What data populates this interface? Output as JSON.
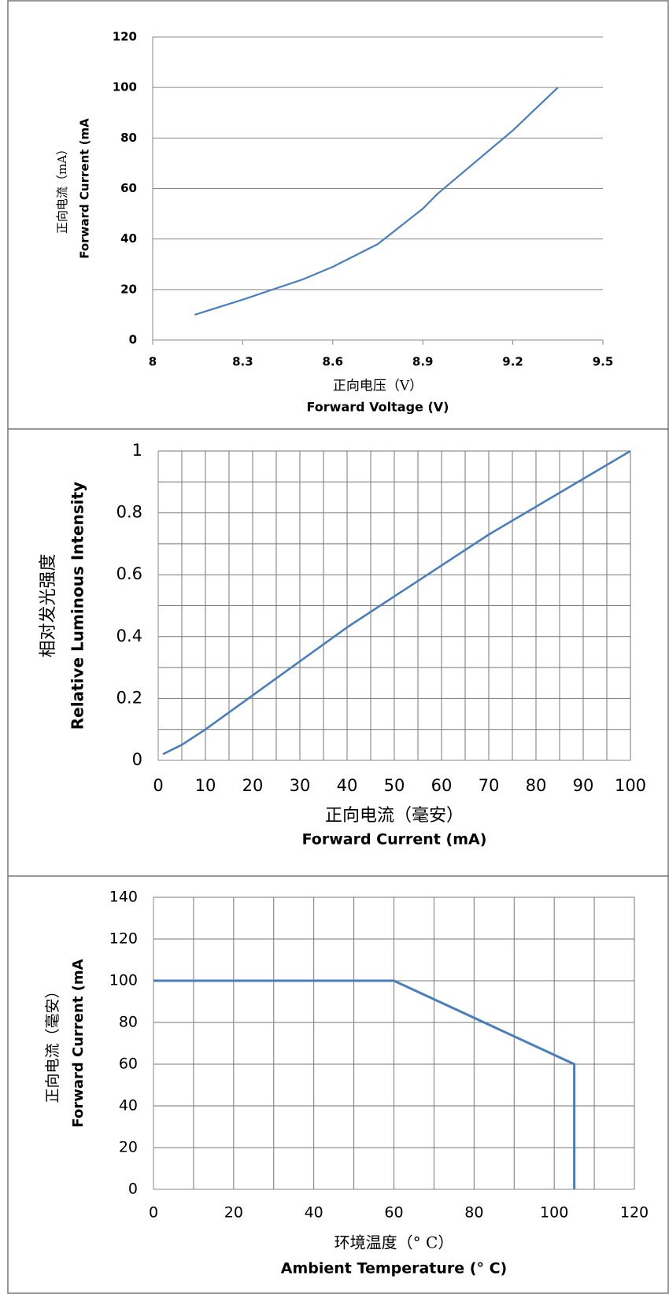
{
  "chart_data": [
    {
      "type": "line",
      "ylabel": [
        "正向电流（mA）",
        "Forward Current (mA"
      ],
      "xlabel": [
        "正向电压（V）",
        "Forward Voltage (V)"
      ],
      "x": [
        8.14,
        8.3,
        8.5,
        8.6,
        8.75,
        8.9,
        8.95,
        9.05,
        9.2,
        9.35
      ],
      "series": [
        {
          "name": "Forward Current",
          "color": "#4a7ebb",
          "values": [
            10,
            16,
            24,
            29,
            38,
            52,
            58,
            68,
            83,
            100
          ]
        }
      ],
      "xlim": [
        8,
        9.5
      ],
      "xticks": [
        8,
        8.3,
        8.6,
        8.9,
        9.2,
        9.5
      ],
      "ylim": [
        0,
        120
      ],
      "yticks": [
        0,
        20,
        40,
        60,
        80,
        100,
        120
      ],
      "xgrid": false,
      "ygrid": true
    },
    {
      "type": "line",
      "ylabel": [
        "相对发光强度",
        "Relative Luminous Intensity"
      ],
      "xlabel": [
        "正向电流（毫安）",
        "Forward Current (mA)"
      ],
      "x": [
        1,
        5,
        10,
        20,
        30,
        40,
        50,
        60,
        70,
        80,
        90,
        100
      ],
      "series": [
        {
          "name": "Relative Luminous Intensity",
          "color": "#4a7ebb",
          "values": [
            0.02,
            0.05,
            0.1,
            0.21,
            0.32,
            0.43,
            0.53,
            0.63,
            0.73,
            0.82,
            0.91,
            1
          ]
        }
      ],
      "xlim": [
        0,
        100
      ],
      "xticks": [
        0,
        10,
        20,
        30,
        40,
        50,
        60,
        70,
        80,
        90,
        100
      ],
      "minor_xticks": [
        5,
        15,
        25,
        35,
        45,
        55,
        65,
        75,
        85,
        95
      ],
      "ylim": [
        0,
        1
      ],
      "yticks": [
        0,
        0.2,
        0.4,
        0.6,
        0.8,
        1
      ],
      "minor_yticks": [
        0.1,
        0.3,
        0.5,
        0.7,
        0.9
      ],
      "xgrid": true,
      "ygrid": true
    },
    {
      "type": "line",
      "ylabel": [
        "正向电流（毫安）",
        "Forward Current (mA"
      ],
      "xlabel": [
        "环境温度（° C）",
        "Ambient Temperature (° C)"
      ],
      "x": [
        0,
        60,
        105,
        105
      ],
      "series": [
        {
          "name": "Forward Current",
          "color": "#4a7ebb",
          "values": [
            100,
            100,
            60,
            0
          ]
        }
      ],
      "xlim": [
        0,
        120
      ],
      "xticks": [
        0,
        20,
        40,
        60,
        80,
        100,
        120
      ],
      "minor_xticks": [
        10,
        30,
        50,
        70,
        90,
        110
      ],
      "ylim": [
        0,
        140
      ],
      "yticks": [
        0,
        20,
        40,
        60,
        80,
        100,
        120,
        140
      ],
      "xgrid": true,
      "ygrid": true
    }
  ]
}
